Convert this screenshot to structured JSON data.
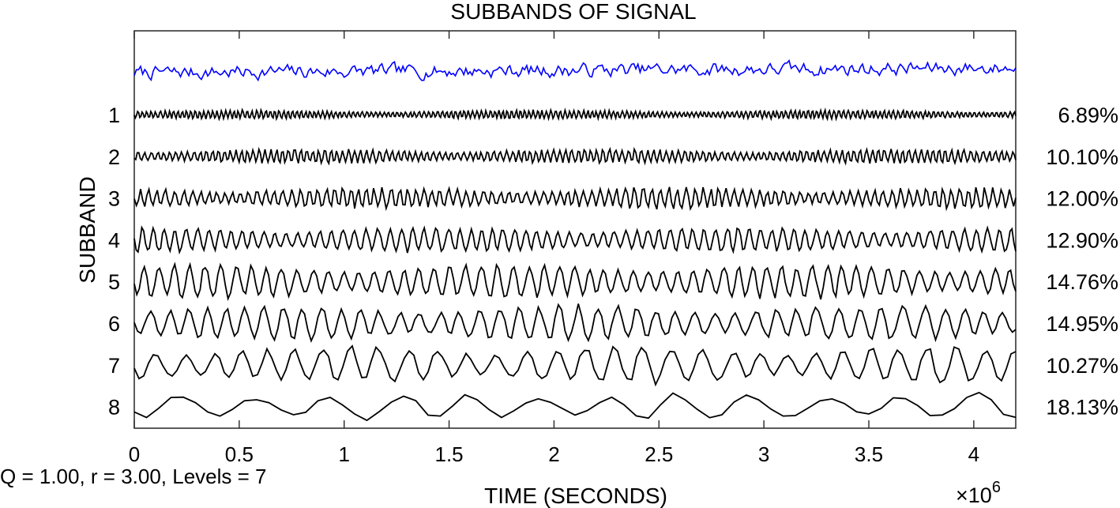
{
  "chart_data": {
    "type": "line",
    "title": "SUBBANDS OF SIGNAL",
    "xlabel": "TIME (SECONDS)",
    "ylabel": "SUBBAND",
    "x_exponent_label": "×10",
    "x_exponent_power": "6",
    "xlim": [
      0,
      4.2
    ],
    "x_ticks": [
      0,
      0.5,
      1,
      1.5,
      2,
      2.5,
      3,
      3.5,
      4
    ],
    "x_tick_labels": [
      "0",
      "0.5",
      "1",
      "1.5",
      "2",
      "2.5",
      "3",
      "3.5",
      "4"
    ],
    "grid": false,
    "annotation": "Q = 1.00, r = 3.00, Levels = 7",
    "signal": {
      "color": "#0000ff",
      "note_points": 420
    },
    "subbands": [
      {
        "label": "1",
        "percent": "6.89%",
        "cycles": 200,
        "amplitude": 0.1,
        "color": "#000000"
      },
      {
        "label": "2",
        "percent": "10.10%",
        "cycles": 145,
        "amplitude": 0.16,
        "color": "#000000"
      },
      {
        "label": "3",
        "percent": "12.00%",
        "cycles": 105,
        "amplitude": 0.24,
        "color": "#000000"
      },
      {
        "label": "4",
        "percent": "12.90%",
        "cycles": 78,
        "amplitude": 0.28,
        "color": "#000000"
      },
      {
        "label": "5",
        "percent": "14.76%",
        "cycles": 58,
        "amplitude": 0.38,
        "color": "#000000"
      },
      {
        "label": "6",
        "percent": "14.95%",
        "cycles": 44,
        "amplitude": 0.4,
        "color": "#000000"
      },
      {
        "label": "7",
        "percent": "10.27%",
        "cycles": 31,
        "amplitude": 0.42,
        "color": "#000000"
      },
      {
        "label": "8",
        "percent": "18.13%",
        "cycles": 12,
        "amplitude": 0.3,
        "color": "#000000"
      }
    ]
  }
}
